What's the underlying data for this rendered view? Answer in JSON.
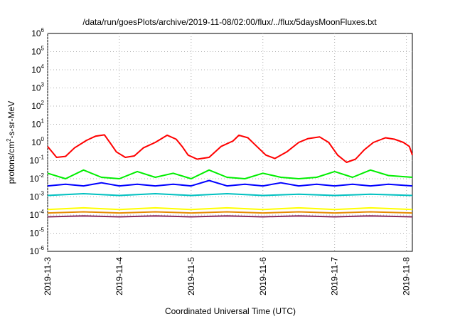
{
  "chart_data": {
    "type": "line",
    "title": "/data/run/goesPlots/archive/2019-11-08/02:00/flux/../flux/5daysMoonFluxes.txt",
    "xlabel": "Coordinated Universal Time (UTC)",
    "ylabel_parts": {
      "prefix": "protons/cm",
      "superscript": "2",
      "suffix": "-s-sr-MeV"
    },
    "y_scale": "log",
    "ylim": [
      1e-06,
      1000000.0
    ],
    "y_ticks": [
      {
        "base": "10",
        "exp": "-6"
      },
      {
        "base": "10",
        "exp": "-5"
      },
      {
        "base": "10",
        "exp": "-4"
      },
      {
        "base": "10",
        "exp": "-3"
      },
      {
        "base": "10",
        "exp": "-2"
      },
      {
        "base": "10",
        "exp": "-1"
      },
      {
        "base": "10",
        "exp": "0"
      },
      {
        "base": "10",
        "exp": "1"
      },
      {
        "base": "10",
        "exp": "2"
      },
      {
        "base": "10",
        "exp": "3"
      },
      {
        "base": "10",
        "exp": "4"
      },
      {
        "base": "10",
        "exp": "5"
      },
      {
        "base": "10",
        "exp": "6"
      }
    ],
    "x_ticks": [
      "2019-11-3",
      "2019-11-4",
      "2019-11-5",
      "2019-11-6",
      "2019-11-7",
      "2019-11-8"
    ],
    "x_range": [
      "2019-11-03T00:00",
      "2019-11-08T02:00"
    ],
    "grid": true,
    "legend": "none",
    "series": [
      {
        "color": "#ff0000",
        "points": [
          [
            "2019-11-03T00:00",
            0.6
          ],
          [
            "2019-11-03T03:00",
            0.15
          ],
          [
            "2019-11-03T06:00",
            0.17
          ],
          [
            "2019-11-03T09:00",
            0.5
          ],
          [
            "2019-11-03T13:00",
            1.3
          ],
          [
            "2019-11-03T16:00",
            2.2
          ],
          [
            "2019-11-03T19:00",
            2.6
          ],
          [
            "2019-11-03T21:00",
            0.9
          ],
          [
            "2019-11-03T23:00",
            0.3
          ],
          [
            "2019-11-04T02:00",
            0.15
          ],
          [
            "2019-11-04T05:00",
            0.18
          ],
          [
            "2019-11-04T08:00",
            0.5
          ],
          [
            "2019-11-04T12:00",
            1.0
          ],
          [
            "2019-11-04T16:00",
            2.5
          ],
          [
            "2019-11-04T19:00",
            1.5
          ],
          [
            "2019-11-04T21:00",
            0.6
          ],
          [
            "2019-11-04T23:00",
            0.2
          ],
          [
            "2019-11-05T02:00",
            0.12
          ],
          [
            "2019-11-05T06:00",
            0.15
          ],
          [
            "2019-11-05T10:00",
            0.6
          ],
          [
            "2019-11-05T14:00",
            1.2
          ],
          [
            "2019-11-05T16:00",
            2.5
          ],
          [
            "2019-11-05T19:00",
            1.8
          ],
          [
            "2019-11-05T22:00",
            0.6
          ],
          [
            "2019-11-06T01:00",
            0.2
          ],
          [
            "2019-11-06T04:00",
            0.13
          ],
          [
            "2019-11-06T08:00",
            0.3
          ],
          [
            "2019-11-06T12:00",
            1.0
          ],
          [
            "2019-11-06T15:00",
            1.6
          ],
          [
            "2019-11-06T19:00",
            2.0
          ],
          [
            "2019-11-06T22:00",
            1.0
          ],
          [
            "2019-11-07T01:00",
            0.2
          ],
          [
            "2019-11-07T04:00",
            0.08
          ],
          [
            "2019-11-07T07:00",
            0.12
          ],
          [
            "2019-11-07T10:00",
            0.4
          ],
          [
            "2019-11-07T13:00",
            1.0
          ],
          [
            "2019-11-07T17:00",
            1.8
          ],
          [
            "2019-11-07T20:00",
            1.5
          ],
          [
            "2019-11-07T23:00",
            1.0
          ],
          [
            "2019-11-08T01:00",
            0.6
          ],
          [
            "2019-11-08T02:00",
            0.2
          ]
        ]
      },
      {
        "color": "#00ee00",
        "points": [
          [
            "2019-11-03T00:00",
            0.02
          ],
          [
            "2019-11-03T06:00",
            0.01
          ],
          [
            "2019-11-03T12:00",
            0.03
          ],
          [
            "2019-11-03T18:00",
            0.012
          ],
          [
            "2019-11-04T00:00",
            0.01
          ],
          [
            "2019-11-04T06:00",
            0.025
          ],
          [
            "2019-11-04T12:00",
            0.012
          ],
          [
            "2019-11-04T18:00",
            0.02
          ],
          [
            "2019-11-05T00:00",
            0.01
          ],
          [
            "2019-11-05T06:00",
            0.03
          ],
          [
            "2019-11-05T12:00",
            0.012
          ],
          [
            "2019-11-05T18:00",
            0.01
          ],
          [
            "2019-11-06T00:00",
            0.02
          ],
          [
            "2019-11-06T06:00",
            0.012
          ],
          [
            "2019-11-06T12:00",
            0.01
          ],
          [
            "2019-11-06T18:00",
            0.012
          ],
          [
            "2019-11-07T00:00",
            0.025
          ],
          [
            "2019-11-07T06:00",
            0.012
          ],
          [
            "2019-11-07T12:00",
            0.03
          ],
          [
            "2019-11-07T18:00",
            0.015
          ],
          [
            "2019-11-08T02:00",
            0.012
          ]
        ]
      },
      {
        "color": "#0000ff",
        "points": [
          [
            "2019-11-03T00:00",
            0.004
          ],
          [
            "2019-11-03T06:00",
            0.005
          ],
          [
            "2019-11-03T12:00",
            0.004
          ],
          [
            "2019-11-03T18:00",
            0.006
          ],
          [
            "2019-11-04T00:00",
            0.004
          ],
          [
            "2019-11-04T06:00",
            0.005
          ],
          [
            "2019-11-04T12:00",
            0.004
          ],
          [
            "2019-11-04T18:00",
            0.005
          ],
          [
            "2019-11-05T00:00",
            0.004
          ],
          [
            "2019-11-05T06:00",
            0.008
          ],
          [
            "2019-11-05T12:00",
            0.004
          ],
          [
            "2019-11-05T18:00",
            0.005
          ],
          [
            "2019-11-06T00:00",
            0.004
          ],
          [
            "2019-11-06T06:00",
            0.006
          ],
          [
            "2019-11-06T12:00",
            0.004
          ],
          [
            "2019-11-06T18:00",
            0.005
          ],
          [
            "2019-11-07T00:00",
            0.004
          ],
          [
            "2019-11-07T06:00",
            0.005
          ],
          [
            "2019-11-07T12:00",
            0.004
          ],
          [
            "2019-11-07T18:00",
            0.005
          ],
          [
            "2019-11-08T02:00",
            0.004
          ]
        ]
      },
      {
        "color": "#00c0c0",
        "points": [
          [
            "2019-11-03T00:00",
            0.0012
          ],
          [
            "2019-11-03T12:00",
            0.0015
          ],
          [
            "2019-11-04T00:00",
            0.0012
          ],
          [
            "2019-11-04T12:00",
            0.0015
          ],
          [
            "2019-11-05T00:00",
            0.0012
          ],
          [
            "2019-11-05T12:00",
            0.0015
          ],
          [
            "2019-11-06T00:00",
            0.0012
          ],
          [
            "2019-11-06T12:00",
            0.0014
          ],
          [
            "2019-11-07T00:00",
            0.0012
          ],
          [
            "2019-11-07T12:00",
            0.0014
          ],
          [
            "2019-11-08T02:00",
            0.0012
          ]
        ]
      },
      {
        "color": "#ffff00",
        "points": [
          [
            "2019-11-03T00:00",
            0.0002
          ],
          [
            "2019-11-03T12:00",
            0.00025
          ],
          [
            "2019-11-04T00:00",
            0.0002
          ],
          [
            "2019-11-04T12:00",
            0.00025
          ],
          [
            "2019-11-05T00:00",
            0.0002
          ],
          [
            "2019-11-05T12:00",
            0.00025
          ],
          [
            "2019-11-06T00:00",
            0.0002
          ],
          [
            "2019-11-06T12:00",
            0.00025
          ],
          [
            "2019-11-07T00:00",
            0.0002
          ],
          [
            "2019-11-07T12:00",
            0.00025
          ],
          [
            "2019-11-08T02:00",
            0.0002
          ]
        ]
      },
      {
        "color": "#e68a00",
        "points": [
          [
            "2019-11-03T00:00",
            0.00013
          ],
          [
            "2019-11-03T12:00",
            0.00015
          ],
          [
            "2019-11-04T00:00",
            0.00013
          ],
          [
            "2019-11-04T12:00",
            0.00015
          ],
          [
            "2019-11-05T00:00",
            0.00013
          ],
          [
            "2019-11-05T12:00",
            0.00015
          ],
          [
            "2019-11-06T00:00",
            0.00013
          ],
          [
            "2019-11-06T12:00",
            0.00015
          ],
          [
            "2019-11-07T00:00",
            0.00013
          ],
          [
            "2019-11-07T12:00",
            0.00015
          ],
          [
            "2019-11-08T02:00",
            0.00013
          ]
        ]
      },
      {
        "color": "#8b2a5e",
        "points": [
          [
            "2019-11-03T00:00",
            8e-05
          ],
          [
            "2019-11-03T12:00",
            9e-05
          ],
          [
            "2019-11-04T00:00",
            8e-05
          ],
          [
            "2019-11-04T12:00",
            9e-05
          ],
          [
            "2019-11-05T00:00",
            8e-05
          ],
          [
            "2019-11-05T12:00",
            9e-05
          ],
          [
            "2019-11-06T00:00",
            8e-05
          ],
          [
            "2019-11-06T12:00",
            9e-05
          ],
          [
            "2019-11-07T00:00",
            8e-05
          ],
          [
            "2019-11-07T12:00",
            9e-05
          ],
          [
            "2019-11-08T02:00",
            8e-05
          ]
        ]
      }
    ]
  }
}
